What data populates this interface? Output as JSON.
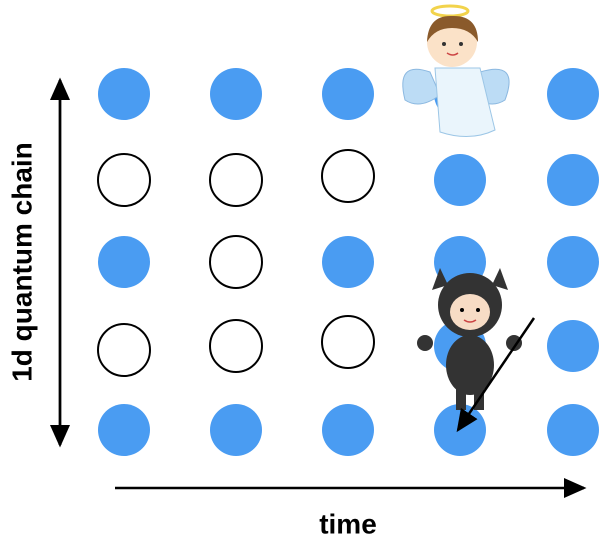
{
  "axes": {
    "vertical_label": "1d quantum chain",
    "horizontal_label": "time"
  }
}
